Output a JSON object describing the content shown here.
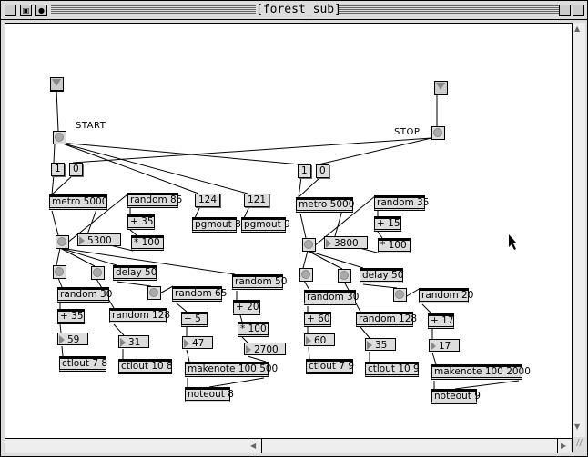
{
  "window": {
    "title": "[forest_sub]"
  },
  "labels": {
    "start": "START",
    "stop": "STOP"
  },
  "left": {
    "msg_on": "1",
    "msg_off": "0",
    "metro": "metro 5000",
    "random85": "random 85",
    "plus35a": "+ 35",
    "times100a": "* 100",
    "msg124": "124",
    "msg121": "121",
    "pgmout8": "pgmout 8",
    "pgmout9": "pgmout 9",
    "num_interval": "5300",
    "delay": "delay 50",
    "random30": "random 30",
    "plus35b": "+ 35",
    "num59": "59",
    "ctlout78": "ctlout 7 8",
    "random128": "random 128",
    "num31": "31",
    "ctlout108": "ctlout 10 8",
    "random65": "random 65",
    "plus5": "+ 5",
    "num47": "47",
    "makenote": "makenote 100 500",
    "noteout": "noteout 8",
    "random50": "random 50",
    "plus20": "+ 20",
    "times100b": "* 100",
    "num2700": "2700"
  },
  "right": {
    "msg_on": "1",
    "msg_off": "0",
    "metro": "metro 5000",
    "random35": "random 35",
    "plus15": "+ 15",
    "times100": "* 100",
    "num_interval": "3800",
    "delay": "delay 50",
    "random30": "random 30",
    "plus60": "+ 60",
    "num60": "60",
    "ctlout79": "ctlout 7 9",
    "random128": "random 128",
    "num35": "35",
    "ctlout109": "ctlout 10 9",
    "random20": "random 20",
    "plus17": "+ 17",
    "num17": "17",
    "makenote": "makenote 100 2000",
    "noteout": "noteout 9"
  }
}
